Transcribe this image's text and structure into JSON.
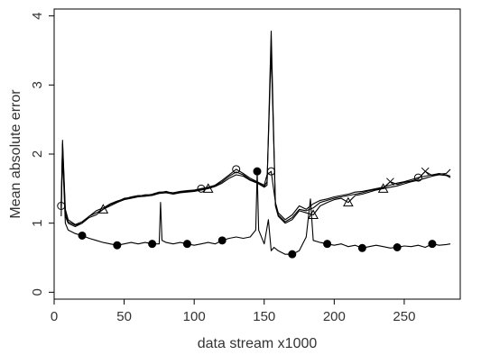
{
  "chart_data": {
    "type": "line",
    "title": "",
    "xlabel": "data stream x1000",
    "ylabel": "Mean absolute error",
    "xlim": [
      0,
      290
    ],
    "ylim": [
      -0.1,
      4.1
    ],
    "x_ticks": [
      0,
      50,
      100,
      150,
      200,
      250
    ],
    "y_ticks": [
      0,
      1,
      2,
      3,
      4
    ],
    "grid": false,
    "legend": "none",
    "colors": {
      "line": "#000000",
      "frame": "#000000",
      "text": "#333333"
    },
    "series": [
      {
        "marker": "circle-hollow",
        "x": [
          5,
          6,
          8,
          10,
          15,
          20,
          25,
          30,
          35,
          40,
          45,
          50,
          55,
          60,
          65,
          70,
          75,
          80,
          85,
          90,
          95,
          100,
          105,
          110,
          115,
          120,
          125,
          130,
          135,
          140,
          145,
          150,
          152,
          155,
          158,
          160,
          165,
          170,
          175,
          180,
          185,
          190,
          195,
          200,
          205,
          210,
          215,
          220,
          225,
          230,
          235,
          240,
          245,
          250,
          255,
          260,
          265,
          270,
          275,
          280,
          283
        ],
        "y": [
          1.25,
          2.2,
          1.2,
          1.05,
          0.98,
          1.02,
          1.1,
          1.18,
          1.22,
          1.28,
          1.32,
          1.35,
          1.38,
          1.4,
          1.4,
          1.42,
          1.45,
          1.45,
          1.44,
          1.46,
          1.47,
          1.48,
          1.5,
          1.52,
          1.55,
          1.62,
          1.7,
          1.78,
          1.72,
          1.65,
          1.6,
          1.55,
          1.7,
          1.75,
          1.3,
          1.15,
          1.05,
          1.12,
          1.25,
          1.2,
          1.28,
          1.33,
          1.35,
          1.38,
          1.4,
          1.42,
          1.45,
          1.46,
          1.48,
          1.5,
          1.52,
          1.55,
          1.58,
          1.6,
          1.63,
          1.66,
          1.68,
          1.7,
          1.72,
          1.7,
          1.68
        ],
        "marker_x": [
          5,
          105,
          130,
          155,
          260
        ]
      },
      {
        "marker": "triangle-hollow",
        "x": [
          5,
          6,
          8,
          10,
          15,
          20,
          25,
          30,
          35,
          40,
          45,
          50,
          55,
          60,
          65,
          70,
          75,
          80,
          85,
          90,
          95,
          100,
          105,
          110,
          115,
          120,
          125,
          130,
          135,
          140,
          145,
          150,
          152,
          155,
          158,
          160,
          165,
          170,
          175,
          180,
          185,
          190,
          195,
          200,
          205,
          210,
          215,
          220,
          225,
          230,
          235,
          240,
          245,
          250,
          255,
          260,
          265,
          270,
          275,
          280,
          283
        ],
        "y": [
          1.2,
          2.1,
          1.1,
          1.0,
          0.95,
          1.0,
          1.08,
          1.12,
          1.2,
          1.25,
          1.3,
          1.34,
          1.36,
          1.38,
          1.39,
          1.4,
          1.43,
          1.44,
          1.42,
          1.44,
          1.45,
          1.46,
          1.48,
          1.5,
          1.53,
          1.58,
          1.65,
          1.7,
          1.68,
          1.62,
          1.58,
          1.52,
          1.55,
          3.78,
          1.25,
          1.1,
          1.0,
          1.05,
          1.18,
          1.15,
          1.12,
          1.25,
          1.3,
          1.34,
          1.36,
          1.3,
          1.4,
          1.42,
          1.45,
          1.48,
          1.5,
          1.52,
          1.54,
          1.57,
          1.6,
          1.62,
          1.65,
          1.68,
          1.7,
          1.69,
          1.66
        ],
        "marker_x": [
          35,
          110,
          185,
          210,
          235
        ]
      },
      {
        "marker": "cross",
        "x": [
          5,
          6,
          8,
          10,
          15,
          20,
          25,
          30,
          35,
          40,
          45,
          50,
          55,
          60,
          65,
          70,
          75,
          80,
          85,
          90,
          95,
          100,
          105,
          110,
          115,
          120,
          125,
          130,
          135,
          140,
          145,
          150,
          152,
          155,
          158,
          160,
          165,
          170,
          175,
          180,
          185,
          190,
          195,
          200,
          205,
          210,
          215,
          220,
          225,
          230,
          235,
          240,
          245,
          250,
          255,
          260,
          265,
          270,
          275,
          280,
          283
        ],
        "y": [
          1.22,
          2.15,
          1.15,
          1.02,
          0.97,
          1.0,
          1.1,
          1.15,
          1.2,
          1.27,
          1.31,
          1.36,
          1.37,
          1.39,
          1.41,
          1.41,
          1.44,
          1.46,
          1.43,
          1.45,
          1.46,
          1.47,
          1.49,
          1.51,
          1.54,
          1.6,
          1.68,
          1.74,
          1.7,
          1.63,
          1.59,
          1.53,
          1.6,
          3.5,
          1.28,
          1.12,
          1.02,
          1.08,
          1.2,
          1.18,
          1.22,
          1.3,
          1.33,
          1.36,
          1.38,
          1.4,
          1.42,
          1.44,
          1.47,
          1.49,
          1.51,
          1.6,
          1.56,
          1.59,
          1.61,
          1.64,
          1.75,
          1.69,
          1.71,
          1.72,
          1.78
        ],
        "marker_x": [
          240,
          265
        ]
      },
      {
        "marker": "circle-solid",
        "x": [
          5,
          6,
          8,
          10,
          15,
          20,
          25,
          30,
          35,
          40,
          45,
          50,
          55,
          60,
          65,
          70,
          75,
          76,
          77,
          80,
          85,
          90,
          95,
          100,
          105,
          110,
          115,
          120,
          125,
          130,
          135,
          140,
          144,
          145,
          146,
          150,
          153,
          155,
          157,
          160,
          165,
          170,
          175,
          180,
          183,
          185,
          190,
          195,
          200,
          205,
          210,
          215,
          220,
          225,
          230,
          235,
          240,
          245,
          250,
          255,
          260,
          265,
          270,
          275,
          280,
          283
        ],
        "y": [
          1.1,
          2.0,
          1.0,
          0.9,
          0.85,
          0.82,
          0.78,
          0.75,
          0.72,
          0.7,
          0.68,
          0.7,
          0.72,
          0.7,
          0.72,
          0.7,
          0.7,
          1.3,
          0.75,
          0.72,
          0.7,
          0.72,
          0.7,
          0.68,
          0.7,
          0.72,
          0.7,
          0.75,
          0.78,
          0.8,
          0.78,
          0.8,
          0.9,
          1.75,
          0.9,
          0.7,
          1.05,
          0.6,
          0.65,
          0.6,
          0.55,
          0.55,
          0.6,
          0.8,
          1.35,
          0.75,
          0.72,
          0.7,
          0.68,
          0.7,
          0.66,
          0.68,
          0.64,
          0.66,
          0.68,
          0.66,
          0.64,
          0.65,
          0.67,
          0.66,
          0.68,
          0.65,
          0.7,
          0.68,
          0.69,
          0.7
        ],
        "marker_x": [
          20,
          45,
          70,
          95,
          120,
          145,
          170,
          195,
          220,
          245,
          270
        ]
      }
    ]
  }
}
